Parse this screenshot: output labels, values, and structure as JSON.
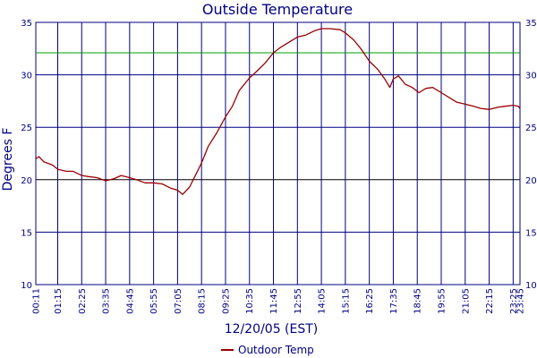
{
  "chart_data": {
    "type": "line",
    "title": "Outside Temperature",
    "xlabel": "12/20/05 (EST)",
    "ylabel": "Degrees F",
    "ylim": [
      10,
      35
    ],
    "yticks": [
      10,
      15,
      20,
      25,
      30,
      35
    ],
    "xlim_minutes": [
      11,
      1425
    ],
    "xtick_labels": [
      "00:11",
      "01:15",
      "02:25",
      "03:35",
      "04:45",
      "05:55",
      "07:05",
      "08:15",
      "09:25",
      "10:35",
      "11:45",
      "12:55",
      "14:05",
      "15:15",
      "16:25",
      "17:35",
      "18:45",
      "19:55",
      "21:05",
      "22:15",
      "23:25",
      "23:45"
    ],
    "grid": true,
    "legend_position": "bottom-center",
    "reference_line": {
      "value": 32.1,
      "color": "#00a000"
    },
    "colors": {
      "series": "#990000",
      "grid": "#000080",
      "background": "#ffffff",
      "text": "#000080"
    },
    "series": [
      {
        "name": "Outdoor Temp",
        "x": [
          "00:11",
          "00:20",
          "00:35",
          "01:00",
          "01:15",
          "01:40",
          "02:00",
          "02:25",
          "02:45",
          "03:10",
          "03:35",
          "04:00",
          "04:20",
          "04:45",
          "05:05",
          "05:30",
          "05:55",
          "06:20",
          "06:45",
          "07:05",
          "07:20",
          "07:40",
          "08:00",
          "08:15",
          "08:35",
          "09:00",
          "09:25",
          "09:45",
          "10:05",
          "10:35",
          "10:55",
          "11:20",
          "11:45",
          "12:05",
          "12:30",
          "12:55",
          "13:20",
          "13:45",
          "14:05",
          "14:30",
          "15:00",
          "15:15",
          "15:40",
          "16:00",
          "16:25",
          "16:50",
          "17:10",
          "17:25",
          "17:35",
          "17:50",
          "18:10",
          "18:30",
          "18:50",
          "19:10",
          "19:30",
          "19:55",
          "20:20",
          "20:40",
          "21:05",
          "21:30",
          "21:50",
          "22:15",
          "22:40",
          "23:00",
          "23:25",
          "23:40",
          "23:45"
        ],
        "values": [
          22.0,
          22.2,
          21.7,
          21.4,
          21.0,
          20.8,
          20.8,
          20.4,
          20.3,
          20.2,
          19.9,
          20.1,
          20.4,
          20.2,
          20.0,
          19.7,
          19.7,
          19.6,
          19.2,
          19.0,
          18.6,
          19.3,
          20.6,
          21.6,
          23.2,
          24.5,
          26.0,
          27.0,
          28.5,
          29.7,
          30.3,
          31.1,
          32.1,
          32.6,
          33.1,
          33.6,
          33.8,
          34.2,
          34.4,
          34.4,
          34.3,
          34.0,
          33.3,
          32.5,
          31.3,
          30.5,
          29.6,
          28.8,
          29.6,
          29.9,
          29.1,
          28.8,
          28.3,
          28.7,
          28.8,
          28.3,
          27.8,
          27.4,
          27.2,
          27.0,
          26.8,
          26.7,
          26.9,
          27.0,
          27.1,
          27.0,
          26.8
        ]
      }
    ]
  }
}
